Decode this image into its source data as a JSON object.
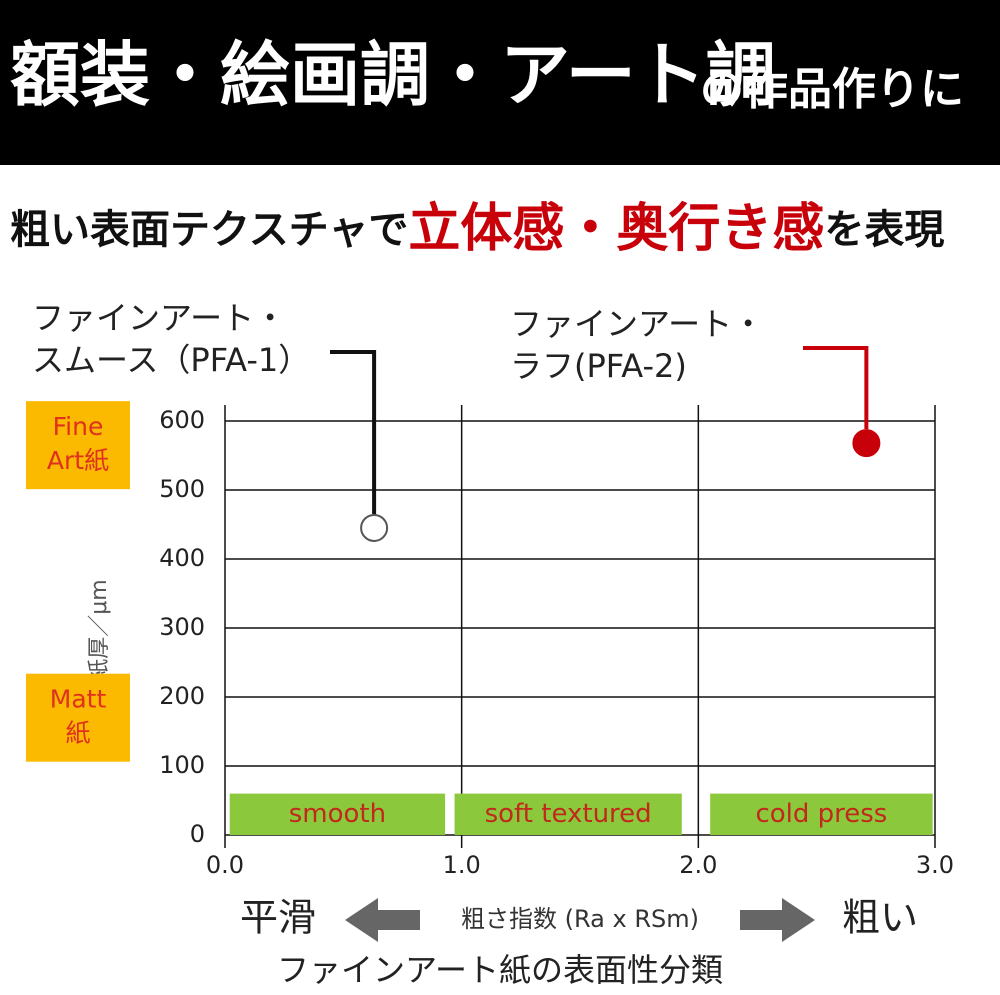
{
  "chart_data": {
    "type": "scatter",
    "title": "額装・絵画調・アート調",
    "title_suffix": "の作品作りに",
    "subtitle_parts": [
      {
        "text": "粗い表面テクスチャで",
        "color": "#111111"
      },
      {
        "text": "立体感・奥行き感",
        "color": "#c8000a"
      },
      {
        "text": "を表現",
        "color": "#111111"
      }
    ],
    "ylabel": "紙厚／μm",
    "xlabel": "ファインアート紙の表面性分類",
    "x_axis_caption": "粗さ指数 (Ra x RSm)",
    "x_left_caption": "平滑",
    "x_right_caption": "粗い",
    "xlim": [
      0,
      3
    ],
    "ylim": [
      0,
      600
    ],
    "xticks": [
      {
        "value": 0,
        "label": "0.0"
      },
      {
        "value": 1,
        "label": "1.0"
      },
      {
        "value": 2,
        "label": "2.0"
      },
      {
        "value": 3,
        "label": "3.0"
      }
    ],
    "yticks": [
      0,
      100,
      200,
      300,
      400,
      500,
      600
    ],
    "grid": true,
    "series": [
      {
        "label": [
          "ファインアート・",
          "スムース（PFA-1）"
        ],
        "color": "#111111",
        "filled": false,
        "x": [
          0.63
        ],
        "values": [
          445
        ]
      },
      {
        "label": [
          "ファインアート・",
          "ラフ(PFA-2)"
        ],
        "color": "#c8000a",
        "filled": true,
        "x": [
          2.71
        ],
        "values": [
          568
        ]
      }
    ],
    "regions": [
      {
        "label": "smooth",
        "x0": 0.02,
        "x1": 0.93,
        "y0": 0,
        "y1": 60
      },
      {
        "label": "soft textured",
        "x0": 0.97,
        "x1": 1.93,
        "y0": 0,
        "y1": 60
      },
      {
        "label": "cold press",
        "x0": 2.05,
        "x1": 2.99,
        "y0": 0,
        "y1": 60
      }
    ],
    "region_color": "#8cc83c",
    "region_text_color": "#c0291b",
    "side_labels": [
      {
        "lines": [
          "Fine",
          "Art紙"
        ],
        "y": 565
      },
      {
        "lines": [
          "Matt",
          "紙"
        ],
        "y": 170
      }
    ],
    "side_label_color": "#fbb900",
    "side_text_color": "#e0301e"
  }
}
